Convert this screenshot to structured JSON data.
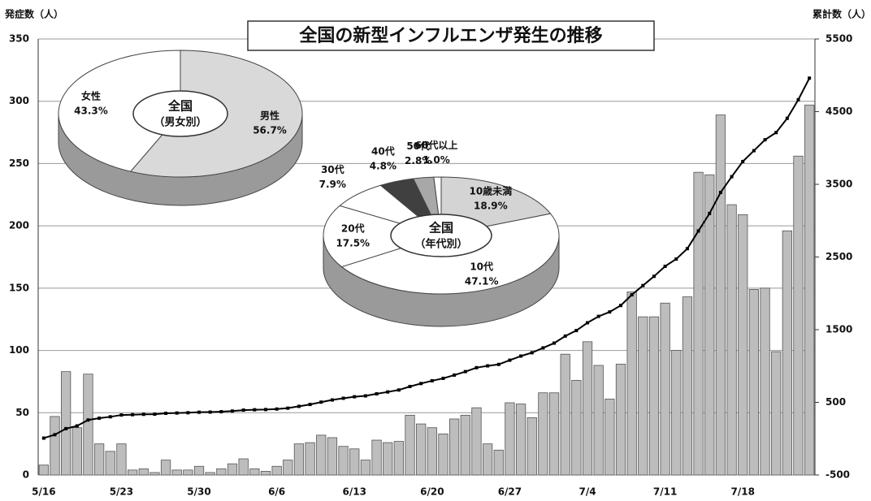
{
  "chart_data": [
    {
      "type": "bar",
      "title": "全国の新型インフルエンザ発生の推移",
      "y_label": "発症数（人）",
      "y2_label": "累計数（人）",
      "categories": [
        "5/16",
        null,
        null,
        null,
        null,
        null,
        null,
        "5/23",
        null,
        null,
        null,
        null,
        null,
        null,
        "5/30",
        null,
        null,
        null,
        null,
        null,
        null,
        "6/6",
        null,
        null,
        null,
        null,
        null,
        null,
        "6/13",
        null,
        null,
        null,
        null,
        null,
        null,
        "6/20",
        null,
        null,
        null,
        null,
        null,
        null,
        "6/27",
        null,
        null,
        null,
        null,
        null,
        null,
        "7/4",
        null,
        null,
        null,
        null,
        null,
        null,
        "7/11",
        null,
        null,
        null,
        null,
        null,
        null,
        "7/18",
        null,
        null,
        null,
        null,
        null,
        null
      ],
      "series": [
        {
          "type": "bar",
          "color": "#bdbdbd",
          "values": [
            8,
            47,
            83,
            38,
            81,
            25,
            19,
            25,
            4,
            5,
            2,
            12,
            4,
            4,
            7,
            2,
            5,
            9,
            13,
            5,
            3,
            7,
            12,
            25,
            26,
            32,
            30,
            23,
            21,
            12,
            28,
            26,
            27,
            48,
            41,
            38,
            33,
            45,
            48,
            54,
            25,
            20,
            58,
            57,
            46,
            66,
            66,
            97,
            76,
            107,
            88,
            61,
            89,
            147,
            127,
            127,
            138,
            100,
            143,
            243,
            241,
            289,
            217,
            209,
            149,
            150,
            99,
            196,
            256,
            297
          ]
        },
        {
          "type": "line",
          "axis": "y2",
          "color": "#000000",
          "values": [
            8,
            55,
            138,
            176,
            257,
            282,
            301,
            326,
            330,
            335,
            337,
            349,
            353,
            357,
            364,
            366,
            371,
            380,
            393,
            398,
            401,
            408,
            420,
            445,
            471,
            503,
            533,
            556,
            577,
            589,
            617,
            643,
            670,
            718,
            759,
            797,
            830,
            875,
            923,
            977,
            1002,
            1022,
            1080,
            1137,
            1183,
            1249,
            1315,
            1412,
            1488,
            1595,
            1683,
            1744,
            1833,
            1980,
            2107,
            2234,
            2372,
            2472,
            2615,
            2858,
            3099,
            3388,
            3605,
            3814,
            3963,
            4113,
            4212,
            4408,
            4664,
            4961
          ]
        }
      ],
      "ylim": [
        0,
        350
      ],
      "yticks": [
        0,
        50,
        100,
        150,
        200,
        250,
        300,
        350
      ],
      "y2lim": [
        -500,
        5500
      ],
      "y2ticks": [
        -500,
        500,
        1500,
        2500,
        3500,
        4500,
        5500
      ],
      "grid": true
    },
    {
      "type": "pie",
      "title": "全国",
      "subtitle": "（男女別）",
      "categories": [
        "男性",
        "女性"
      ],
      "values": [
        56.7,
        43.3
      ],
      "value_labels": [
        "56.7%",
        "43.3%"
      ],
      "colors": [
        "#d9d9d9",
        "#ffffff"
      ]
    },
    {
      "type": "pie",
      "title": "全国",
      "subtitle": "（年代別）",
      "categories": [
        "10歳未満",
        "10代",
        "20代",
        "30代",
        "40代",
        "50代",
        "60代以上"
      ],
      "values": [
        18.9,
        47.1,
        17.5,
        7.9,
        4.8,
        2.8,
        1.0
      ],
      "value_labels": [
        "18.9%",
        "47.1%",
        "17.5%",
        "7.9%",
        "4.8%",
        "2.8%",
        "1.0%"
      ],
      "colors": [
        "#d4d4d4",
        "#ffffff",
        "#ffffff",
        "#ffffff",
        "#404040",
        "#a8a8a8",
        "#ffffff"
      ]
    }
  ]
}
